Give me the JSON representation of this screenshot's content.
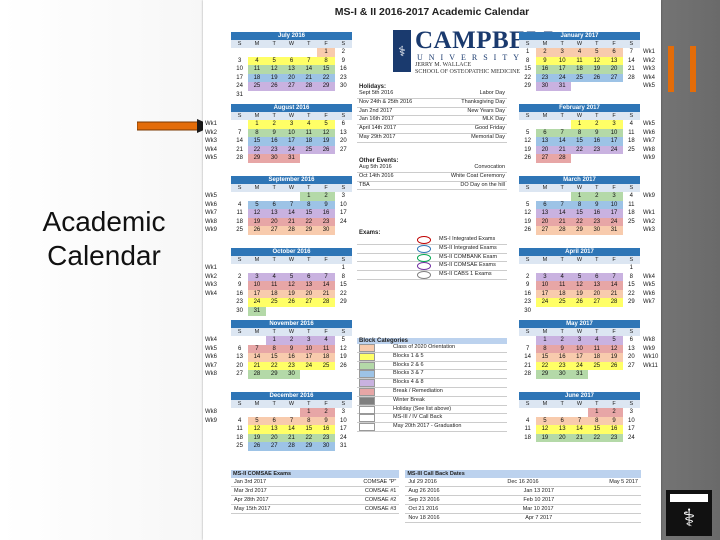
{
  "slide": {
    "title": "Academic Calendar",
    "accent_color": "#e36c09",
    "arrow_icon": "right-arrow-icon",
    "logo_icon": "caduceus-icon"
  },
  "calendar": {
    "title": "MS-I & II 2016-2017 Academic Calendar",
    "dow": [
      "S",
      "M",
      "T",
      "W",
      "T",
      "F",
      "S"
    ],
    "logo": {
      "name": "CAMPBELL",
      "university": "UNIVERSITY",
      "school_line1": "JERRY M. WALLACE",
      "school_line2": "SCHOOL OF OSTEOPATHIC MEDICINE"
    },
    "months_left": [
      {
        "name": "July 2016",
        "days": [
          "",
          "",
          "",
          "",
          "",
          "1",
          "2",
          "3",
          "4",
          "5",
          "6",
          "7",
          "8",
          "9",
          "10",
          "11",
          "12",
          "13",
          "14",
          "15",
          "16",
          "17",
          "18",
          "19",
          "20",
          "21",
          "22",
          "23",
          "24",
          "25",
          "26",
          "27",
          "28",
          "29",
          "30",
          "31"
        ],
        "wk": []
      },
      {
        "name": "August 2016",
        "days": [
          "",
          "1",
          "2",
          "3",
          "4",
          "5",
          "6",
          "7",
          "8",
          "9",
          "10",
          "11",
          "12",
          "13",
          "14",
          "15",
          "16",
          "17",
          "18",
          "19",
          "20",
          "21",
          "22",
          "23",
          "24",
          "25",
          "26",
          "27",
          "28",
          "29",
          "30",
          "31"
        ],
        "wk": [
          "Wk1",
          "Wk2",
          "Wk3",
          "Wk4",
          "Wk5"
        ]
      },
      {
        "name": "September 2016",
        "days": [
          "",
          "",
          "",
          "",
          "1",
          "2",
          "3",
          "4",
          "5",
          "6",
          "7",
          "8",
          "9",
          "10",
          "11",
          "12",
          "13",
          "14",
          "15",
          "16",
          "17",
          "18",
          "19",
          "20",
          "21",
          "22",
          "23",
          "24",
          "25",
          "26",
          "27",
          "28",
          "29",
          "30"
        ],
        "wk": [
          "Wk5",
          "Wk6",
          "Wk7",
          "Wk8",
          "Wk9"
        ]
      },
      {
        "name": "October 2016",
        "days": [
          "",
          "",
          "",
          "",
          "",
          "",
          "1",
          "2",
          "3",
          "4",
          "5",
          "6",
          "7",
          "8",
          "9",
          "10",
          "11",
          "12",
          "13",
          "14",
          "15",
          "16",
          "17",
          "18",
          "19",
          "20",
          "21",
          "22",
          "23",
          "24",
          "25",
          "26",
          "27",
          "28",
          "29",
          "30",
          "31"
        ],
        "wk": [
          "Wk1",
          "Wk2",
          "Wk3",
          "Wk4"
        ]
      },
      {
        "name": "November 2016",
        "days": [
          "",
          "",
          "1",
          "2",
          "3",
          "4",
          "5",
          "6",
          "7",
          "8",
          "9",
          "10",
          "11",
          "12",
          "13",
          "14",
          "15",
          "16",
          "17",
          "18",
          "19",
          "20",
          "21",
          "22",
          "23",
          "24",
          "25",
          "26",
          "27",
          "28",
          "29",
          "30"
        ],
        "wk": [
          "Wk4",
          "Wk5",
          "Wk6",
          "Wk7",
          "Wk8"
        ]
      },
      {
        "name": "December 2016",
        "days": [
          "",
          "",
          "",
          "",
          "1",
          "2",
          "3",
          "4",
          "5",
          "6",
          "7",
          "8",
          "9",
          "10",
          "11",
          "12",
          "13",
          "14",
          "15",
          "16",
          "17",
          "18",
          "19",
          "20",
          "21",
          "22",
          "23",
          "24",
          "25",
          "26",
          "27",
          "28",
          "29",
          "30",
          "31"
        ],
        "wk": [
          "Wk8",
          "Wk9"
        ]
      }
    ],
    "months_right": [
      {
        "name": "January 2017",
        "days": [
          "1",
          "2",
          "3",
          "4",
          "5",
          "6",
          "7",
          "8",
          "9",
          "10",
          "11",
          "12",
          "13",
          "14",
          "15",
          "16",
          "17",
          "18",
          "19",
          "20",
          "21",
          "22",
          "23",
          "24",
          "25",
          "26",
          "27",
          "28",
          "29",
          "30",
          "31"
        ],
        "wk": [
          "Wk1",
          "Wk2",
          "Wk3",
          "Wk4",
          "Wk5"
        ]
      },
      {
        "name": "February 2017",
        "days": [
          "",
          "",
          "",
          "1",
          "2",
          "3",
          "4",
          "5",
          "6",
          "7",
          "8",
          "9",
          "10",
          "11",
          "12",
          "13",
          "14",
          "15",
          "16",
          "17",
          "18",
          "19",
          "20",
          "21",
          "22",
          "23",
          "24",
          "25",
          "26",
          "27",
          "28"
        ],
        "wk": [
          "Wk5",
          "Wk6",
          "Wk7",
          "Wk8",
          "Wk9"
        ]
      },
      {
        "name": "March 2017",
        "days": [
          "",
          "",
          "",
          "1",
          "2",
          "3",
          "4",
          "5",
          "6",
          "7",
          "8",
          "9",
          "10",
          "11",
          "12",
          "13",
          "14",
          "15",
          "16",
          "17",
          "18",
          "19",
          "20",
          "21",
          "22",
          "23",
          "24",
          "25",
          "26",
          "27",
          "28",
          "29",
          "30",
          "31"
        ],
        "wk": [
          "Wk9",
          "",
          "Wk1",
          "Wk2",
          "Wk3"
        ]
      },
      {
        "name": "April 2017",
        "days": [
          "",
          "",
          "",
          "",
          "",
          "",
          "1",
          "2",
          "3",
          "4",
          "5",
          "6",
          "7",
          "8",
          "9",
          "10",
          "11",
          "12",
          "13",
          "14",
          "15",
          "16",
          "17",
          "18",
          "19",
          "20",
          "21",
          "22",
          "23",
          "24",
          "25",
          "26",
          "27",
          "28",
          "29",
          "30"
        ],
        "wk": [
          "",
          "Wk4",
          "Wk5",
          "Wk6",
          "Wk7"
        ]
      },
      {
        "name": "May 2017",
        "days": [
          "",
          "1",
          "2",
          "3",
          "4",
          "5",
          "6",
          "7",
          "8",
          "9",
          "10",
          "11",
          "12",
          "13",
          "14",
          "15",
          "16",
          "17",
          "18",
          "19",
          "20",
          "21",
          "22",
          "23",
          "24",
          "25",
          "26",
          "27",
          "28",
          "29",
          "30",
          "31"
        ],
        "wk": [
          "Wk8",
          "Wk9",
          "Wk10",
          "Wk11"
        ]
      },
      {
        "name": "June 2017",
        "days": [
          "",
          "",
          "",
          "",
          "1",
          "2",
          "3",
          "4",
          "5",
          "6",
          "7",
          "8",
          "9",
          "10",
          "11",
          "12",
          "13",
          "14",
          "15",
          "16",
          "17",
          "18",
          "19",
          "20",
          "21",
          "22",
          "23",
          "24"
        ],
        "wk": []
      }
    ],
    "holidays": {
      "header": "Holidays:",
      "rows": [
        [
          "Sept 5th 2016",
          "Labor Day"
        ],
        [
          "Nov 24th & 25th 2016",
          "Thanksgiving Day"
        ],
        [
          "Jan 2nd 2017",
          "New Years Day"
        ],
        [
          "Jan 16th 2017",
          "MLK Day"
        ],
        [
          "April 14th 2017",
          "Good Friday"
        ],
        [
          "May 29th 2017",
          "Memorial Day"
        ]
      ]
    },
    "other_events": {
      "header": "Other Events:",
      "rows": [
        [
          "Aug 5th 2016",
          "Convocation"
        ],
        [
          "Oct 14th 2016",
          "White Coat Ceremony"
        ],
        [
          "TBA",
          "DO Day on the hill"
        ]
      ]
    },
    "exams": {
      "header": "Exams:",
      "rows": [
        {
          "label": "MS-I Integrated Exams",
          "color": "#c00000"
        },
        {
          "label": "MS-II Integrated Exams",
          "color": "#2e75b6"
        },
        {
          "label": "MS-II COMBANK Exam",
          "color": "#00a650"
        },
        {
          "label": "MS-II COMSAE Exams",
          "color": "#7030a0"
        },
        {
          "label": "MS-II CABS 1 Exams",
          "color": "#7f7f7f"
        }
      ]
    },
    "block_categories": {
      "header": "Block Categories",
      "rows": [
        {
          "label": "Class of 2020 Orientation",
          "color": "#f8cbad"
        },
        {
          "label": "Blocks 1 & 5",
          "color": "#ffff66"
        },
        {
          "label": "Blocks 2 & 6",
          "color": "#b4d9a8"
        },
        {
          "label": "Blocks 3 & 7",
          "color": "#9dc3e6"
        },
        {
          "label": "Blocks 4 & 8",
          "color": "#c9b2e0"
        },
        {
          "label": "Break / Remediation",
          "color": "#e7a6a6"
        },
        {
          "label": "Winter Break",
          "color": "#7f7f7f"
        },
        {
          "label": "Holiday (See list above)",
          "color": "#ffffff"
        },
        {
          "label": "MS-III / IV Call Back",
          "color": "#ffffff"
        },
        {
          "label": "May 20th 2017 - Graduation",
          "color": "#ffffff"
        }
      ]
    },
    "comsae": {
      "header": "MS-II COMSAE Exams",
      "rows": [
        [
          "Jan 3rd 2017",
          "COMSAE \"P\""
        ],
        [
          "Mar 3rd 2017",
          "COMSAE #1"
        ],
        [
          "Apr 28th 2017",
          "COMSAE #2"
        ],
        [
          "May 15th 2017",
          "COMSAE #3"
        ]
      ]
    },
    "callback": {
      "header": "MS-III Call Back Dates",
      "rows": [
        [
          "Jul 29 2016",
          "Dec 16 2016",
          "May 5 2017"
        ],
        [
          "Aug 26 2016",
          "Jan 13 2017",
          ""
        ],
        [
          "Sep 23 2016",
          "Feb 10 2017",
          ""
        ],
        [
          "Oct 21 2016",
          "Mar 10 2017",
          ""
        ],
        [
          "Nov 18 2016",
          "Apr 7 2017",
          ""
        ]
      ]
    }
  }
}
